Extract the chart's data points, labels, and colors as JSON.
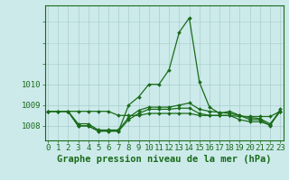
{
  "x": [
    0,
    1,
    2,
    3,
    4,
    5,
    6,
    7,
    8,
    9,
    10,
    11,
    12,
    13,
    14,
    15,
    16,
    17,
    18,
    19,
    20,
    21,
    22,
    23
  ],
  "lineA": [
    1008.7,
    1008.7,
    1008.7,
    1008.0,
    1008.0,
    1007.75,
    1007.75,
    1007.75,
    1009.0,
    1009.4,
    1010.0,
    1010.0,
    1010.7,
    1012.5,
    1013.2,
    1010.1,
    1008.9,
    1008.6,
    1008.7,
    1008.5,
    1008.3,
    1008.3,
    1008.0,
    1008.8
  ],
  "lineB": [
    1008.7,
    1008.7,
    1008.7,
    1008.7,
    1008.7,
    1008.7,
    1008.7,
    1008.5,
    1008.5,
    1008.5,
    1008.6,
    1008.6,
    1008.6,
    1008.6,
    1008.6,
    1008.5,
    1008.5,
    1008.5,
    1008.5,
    1008.45,
    1008.45,
    1008.45,
    1008.45,
    1008.7
  ],
  "lineC": [
    1008.7,
    1008.7,
    1008.7,
    1008.0,
    1008.0,
    1007.75,
    1007.75,
    1007.75,
    1008.3,
    1008.6,
    1008.8,
    1008.8,
    1008.8,
    1008.85,
    1008.85,
    1008.6,
    1008.5,
    1008.5,
    1008.5,
    1008.3,
    1008.2,
    1008.2,
    1008.05,
    1008.7
  ],
  "lineD": [
    1008.7,
    1008.7,
    1008.7,
    1008.1,
    1008.1,
    1007.8,
    1007.8,
    1007.8,
    1008.4,
    1008.75,
    1008.9,
    1008.9,
    1008.9,
    1009.0,
    1009.1,
    1008.8,
    1008.7,
    1008.65,
    1008.6,
    1008.5,
    1008.4,
    1008.35,
    1008.1,
    1008.7
  ],
  "line_color": "#1a6b1a",
  "bg_color": "#cceaea",
  "grid_color": "#aacccc",
  "xlabel": "Graphe pression niveau de la mer (hPa)",
  "yticks": [
    1008,
    1009,
    1010
  ],
  "ylim": [
    1007.3,
    1013.8
  ],
  "xlim": [
    -0.3,
    23.3
  ],
  "xlabel_fontsize": 7.5,
  "tick_fontsize": 6.5
}
